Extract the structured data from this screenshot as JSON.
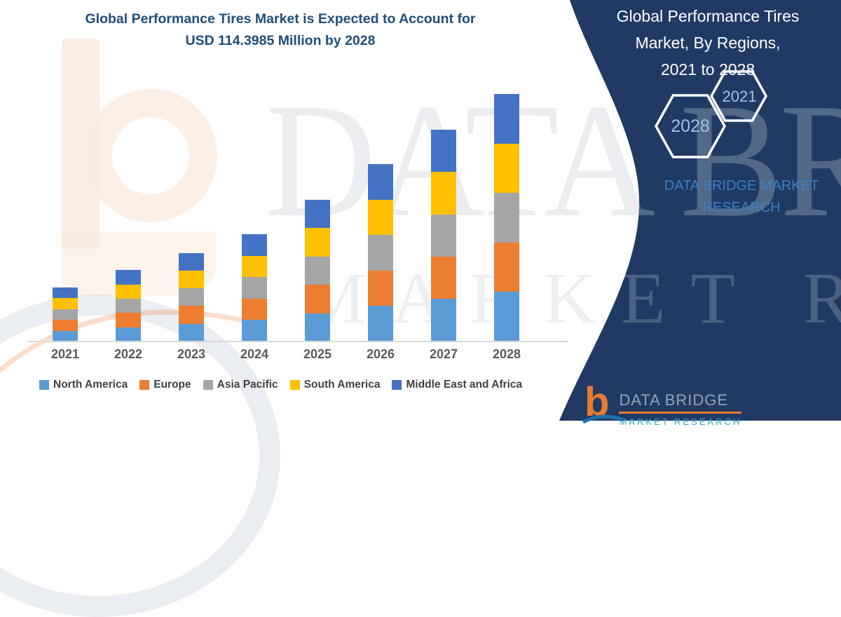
{
  "title": {
    "line1": "Global Performance Tires Market is Expected to Account for",
    "line2": "USD 114.3985 Million by 2028"
  },
  "chart_data": {
    "type": "bar",
    "stacked": true,
    "title": "Global Performance Tires Market, By Regions, 2021 to 2028",
    "categories": [
      "2021",
      "2022",
      "2023",
      "2024",
      "2025",
      "2026",
      "2027",
      "2028"
    ],
    "series": [
      {
        "name": "North America",
        "color": "#5B9BD5",
        "values": [
          5.0,
          6.6,
          8.2,
          9.9,
          13.1,
          16.4,
          19.6,
          22.88
        ]
      },
      {
        "name": "Europe",
        "color": "#ED7D31",
        "values": [
          5.0,
          6.6,
          8.2,
          9.9,
          13.1,
          16.4,
          19.6,
          22.88
        ]
      },
      {
        "name": "Asia Pacific",
        "color": "#A5A5A5",
        "values": [
          5.0,
          6.6,
          8.2,
          9.9,
          13.1,
          16.4,
          19.6,
          22.88
        ]
      },
      {
        "name": "South America",
        "color": "#FFC000",
        "values": [
          5.0,
          6.6,
          8.2,
          9.9,
          13.1,
          16.4,
          19.6,
          22.88
        ]
      },
      {
        "name": "Middle East and Africa",
        "color": "#4472C4",
        "values": [
          5.0,
          6.6,
          8.2,
          9.9,
          13.1,
          16.4,
          19.6,
          22.88
        ]
      }
    ],
    "totals_usd_million": [
      25.0,
      33.0,
      41.0,
      49.5,
      65.5,
      82.0,
      98.0,
      114.3985
    ],
    "xlabel": "",
    "ylabel": "",
    "y_axis_visible": false,
    "grid": false,
    "legend_position": "bottom"
  },
  "right_panel": {
    "bg_color": "#203A64",
    "title_lines": [
      "Global Performance Tires",
      "Market, By Regions,",
      "2021 to 2028"
    ],
    "hexagons": [
      {
        "label": "2028"
      },
      {
        "label": "2021"
      }
    ],
    "brand": {
      "line1": "DATA BRIDGE MARKET",
      "line2": "RESEARCH"
    }
  },
  "watermark": {
    "line1": "DATA BRIDGE",
    "line2": "MARKET RESEARCH"
  },
  "footer_logo": {
    "icon_glyph": "b",
    "brand": "DATA BRIDGE",
    "sub": "MARKET RESEARCH"
  },
  "colors": {
    "title_navy": "#1F4E79",
    "brand_blue": "#3B7FC4",
    "accent_orange": "#E87B2E",
    "hex_label_blue": "#9DC3E6",
    "axis_gray": "#D9D9D9"
  }
}
